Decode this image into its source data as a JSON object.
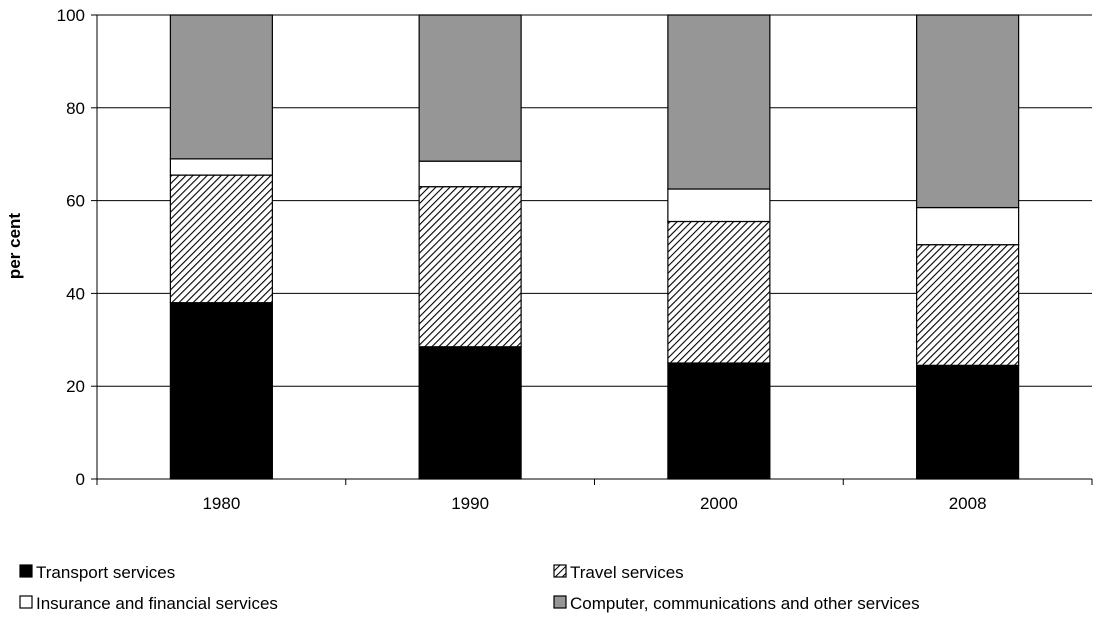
{
  "chart_data": {
    "type": "bar",
    "stacked": true,
    "title": "",
    "xlabel": "",
    "ylabel": "per cent",
    "ylim": [
      0,
      100
    ],
    "yticks": [
      0,
      20,
      40,
      60,
      80,
      100
    ],
    "categories": [
      "1980",
      "1990",
      "2000",
      "2008"
    ],
    "grid": "horizontal",
    "legend_position": "bottom",
    "series": [
      {
        "name": "Transport services",
        "values": [
          38,
          28.5,
          25,
          24.5
        ],
        "fill": "solid",
        "color": "#000000"
      },
      {
        "name": "Travel services",
        "values": [
          27.5,
          34.5,
          30.5,
          26
        ],
        "fill": "hatch",
        "color": "#000000"
      },
      {
        "name": "Insurance and financial services",
        "values": [
          3.5,
          5.5,
          7,
          8
        ],
        "fill": "solid",
        "color": "#ffffff"
      },
      {
        "name": "Computer, communications and other services",
        "values": [
          31,
          31.5,
          37.5,
          41.5
        ],
        "fill": "solid",
        "color": "#969696"
      }
    ]
  }
}
